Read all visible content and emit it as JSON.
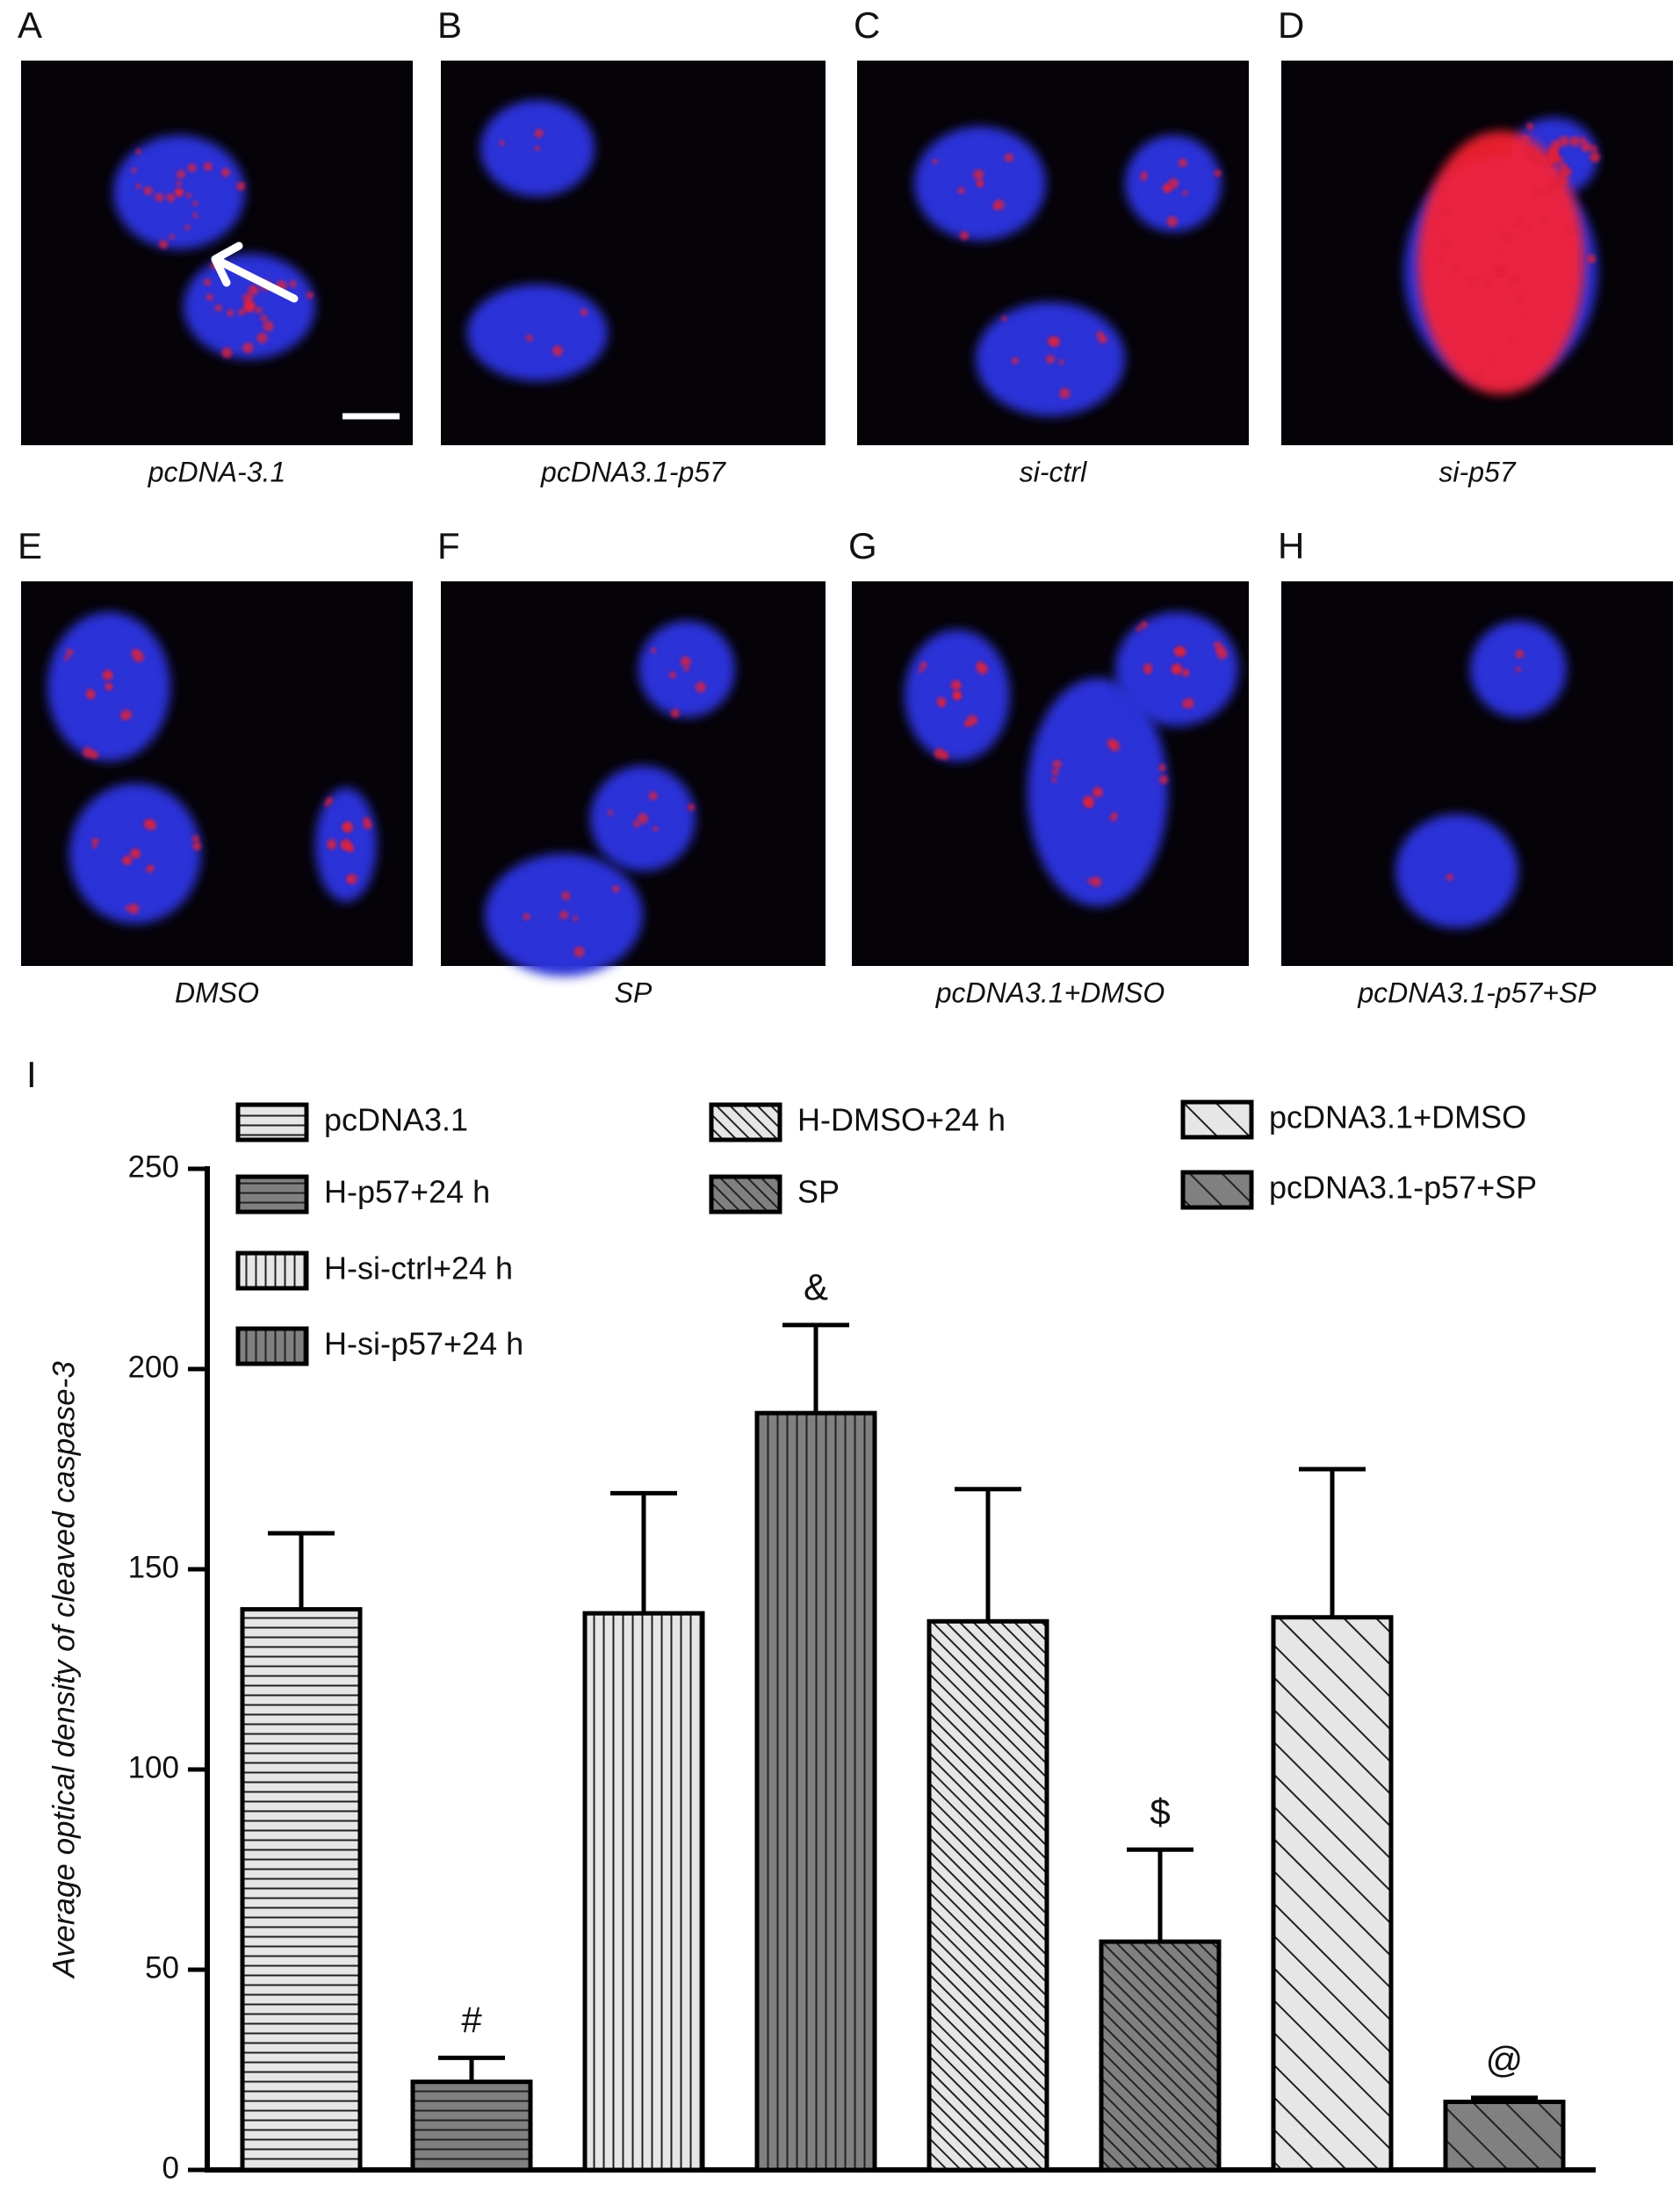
{
  "panels": [
    {
      "letter": "A",
      "caption": "pcDNA-3.1"
    },
    {
      "letter": "B",
      "caption": "pcDNA3.1-p57"
    },
    {
      "letter": "C",
      "caption": "si-ctrl"
    },
    {
      "letter": "D",
      "caption": "si-p57"
    },
    {
      "letter": "E",
      "caption": "DMSO"
    },
    {
      "letter": "F",
      "caption": "SP"
    },
    {
      "letter": "G",
      "caption": "pcDNA3.1+DMSO"
    },
    {
      "letter": "H",
      "caption": "pcDNA3.1-p57+SP"
    }
  ],
  "chart_data": {
    "type": "bar",
    "panel_label": "I",
    "y_label": "Average optical density of cleaved caspase-3",
    "categories": [
      "pcDNA3.1",
      "H-p57+24 h",
      "H-si-ctrl+24 h",
      "H-si-p57+24 h",
      "H-DMSO+24 h",
      "SP",
      "pcDNA3.1+DMSO",
      "pcDNA3.1-p57+SP"
    ],
    "values": [
      140,
      22,
      139,
      189,
      137,
      57,
      138,
      17
    ],
    "errors": [
      19,
      6,
      30,
      22,
      33,
      23,
      37,
      1
    ],
    "significance": [
      null,
      "#",
      null,
      "&",
      null,
      "$",
      null,
      "@"
    ],
    "colors": [
      "#e6e6e6",
      "#808080",
      "#e6e6e6",
      "#808080",
      "#e6e6e6",
      "#808080",
      "#e6e6e6",
      "#808080"
    ],
    "patterns": [
      "horizontal",
      "horizontal",
      "vertical",
      "vertical",
      "diagonal-fine",
      "diagonal-fine",
      "diagonal-wide",
      "diagonal-wide"
    ],
    "ylim": [
      0,
      250
    ],
    "yticks": [
      0,
      50,
      100,
      150,
      200,
      250
    ]
  }
}
